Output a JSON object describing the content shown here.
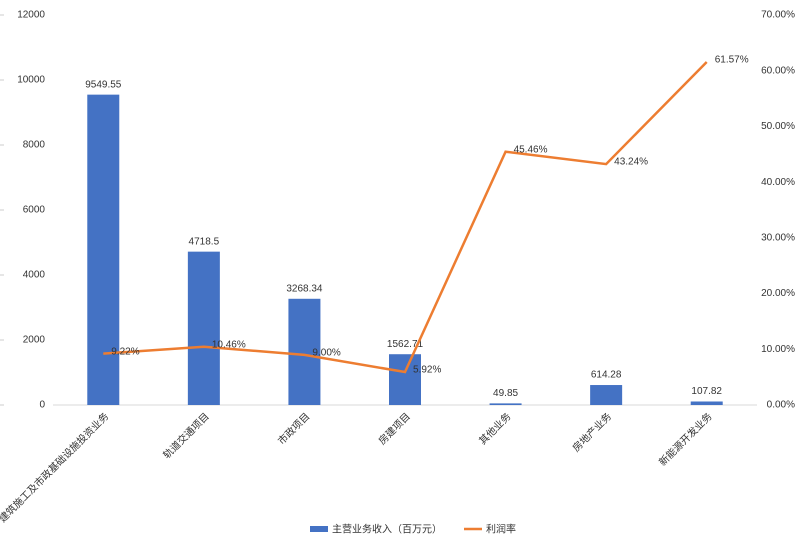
{
  "chart_data": {
    "type": "bar_line",
    "categories": [
      "建筑施工及市政基础设施投资业务",
      "轨道交通项目",
      "市政项目",
      "房建项目",
      "其他业务",
      "房地产业务",
      "新能源开发业务"
    ],
    "series": [
      {
        "name": "主营业务收入（百万元）",
        "color": "#4472c4",
        "type": "bar",
        "values": [
          9549.55,
          4718.5,
          3268.34,
          1562.71,
          49.85,
          614.28,
          107.82
        ]
      },
      {
        "name": "利润率",
        "color": "#ed7d31",
        "type": "line",
        "axis": "y2",
        "values": [
          9.22,
          10.46,
          9.0,
          5.92,
          45.46,
          43.24,
          61.57
        ],
        "value_labels": [
          "9.22%",
          "10.46%",
          "9.00%",
          "5.92%",
          "45.46%",
          "43.24%",
          "61.57%"
        ]
      }
    ],
    "ylim": [
      0,
      12000
    ],
    "yticks": [
      0,
      2000,
      4000,
      6000,
      8000,
      10000,
      12000
    ],
    "y2lim": [
      0,
      70
    ],
    "y2ticks": [
      {
        "value": 0,
        "label": "0.00%"
      },
      {
        "value": 10,
        "label": "10.00%"
      },
      {
        "value": 20,
        "label": "20.00%"
      },
      {
        "value": 30,
        "label": "30.00%"
      },
      {
        "value": 40,
        "label": "40.00%"
      },
      {
        "value": 50,
        "label": "50.00%"
      },
      {
        "value": 60,
        "label": "60.00%"
      },
      {
        "value": 70,
        "label": "70.00%"
      }
    ],
    "legend": "bottom"
  }
}
